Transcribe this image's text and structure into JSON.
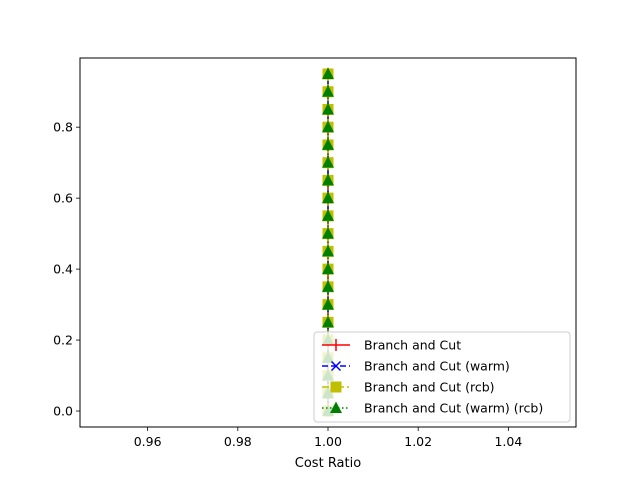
{
  "chart_data": {
    "type": "line",
    "title": "",
    "xlabel": "Cost Ratio",
    "ylabel": "",
    "xlim": [
      0.945,
      1.055
    ],
    "ylim": [
      -0.045,
      0.995
    ],
    "xticks": [
      "0.96",
      "0.98",
      "1.00",
      "1.02",
      "1.04"
    ],
    "xtick_values": [
      0.96,
      0.98,
      1.0,
      1.02,
      1.04
    ],
    "yticks": [
      "0.0",
      "0.2",
      "0.4",
      "0.6",
      "0.8"
    ],
    "ytick_values": [
      0.0,
      0.2,
      0.4,
      0.6,
      0.8
    ],
    "grid": false,
    "legend_position": "lower right",
    "series": [
      {
        "name": "Branch and Cut",
        "color": "#ff0000",
        "marker": "vline",
        "linestyle": "solid",
        "x": [
          1,
          1,
          1,
          1,
          1,
          1,
          1,
          1,
          1,
          1,
          1,
          1,
          1,
          1,
          1,
          1,
          1,
          1,
          1,
          1
        ],
        "y": [
          0.0,
          0.05,
          0.1,
          0.15,
          0.2,
          0.25,
          0.3,
          0.35,
          0.4,
          0.45,
          0.5,
          0.55,
          0.6,
          0.65,
          0.7,
          0.75,
          0.8,
          0.85,
          0.9,
          0.95
        ]
      },
      {
        "name": "Branch and Cut (warm)",
        "color": "#0000ff",
        "marker": "x",
        "linestyle": "dashed",
        "x": [
          1,
          1,
          1,
          1,
          1,
          1,
          1,
          1,
          1,
          1,
          1,
          1,
          1,
          1,
          1,
          1,
          1,
          1,
          1,
          1
        ],
        "y": [
          0.0,
          0.05,
          0.1,
          0.15,
          0.2,
          0.25,
          0.3,
          0.35,
          0.4,
          0.45,
          0.5,
          0.55,
          0.6,
          0.65,
          0.7,
          0.75,
          0.8,
          0.85,
          0.9,
          0.95
        ]
      },
      {
        "name": "Branch and Cut (rcb)",
        "color": "#bfbf00",
        "marker": "square",
        "linestyle": "dashdot",
        "x": [
          1,
          1,
          1,
          1,
          1,
          1,
          1,
          1,
          1,
          1,
          1,
          1,
          1,
          1,
          1,
          1,
          1,
          1,
          1,
          1
        ],
        "y": [
          0.0,
          0.05,
          0.1,
          0.15,
          0.2,
          0.25,
          0.3,
          0.35,
          0.4,
          0.45,
          0.5,
          0.55,
          0.6,
          0.65,
          0.7,
          0.75,
          0.8,
          0.85,
          0.9,
          0.95
        ]
      },
      {
        "name": "Branch and Cut (warm) (rcb)",
        "color": "#008000",
        "marker": "triangle",
        "linestyle": "dotted",
        "x": [
          1,
          1,
          1,
          1,
          1,
          1,
          1,
          1,
          1,
          1,
          1,
          1,
          1,
          1,
          1,
          1,
          1,
          1,
          1,
          1
        ],
        "y": [
          0.0,
          0.05,
          0.1,
          0.15,
          0.2,
          0.25,
          0.3,
          0.35,
          0.4,
          0.45,
          0.5,
          0.55,
          0.6,
          0.65,
          0.7,
          0.75,
          0.8,
          0.85,
          0.9,
          0.95
        ]
      }
    ]
  }
}
